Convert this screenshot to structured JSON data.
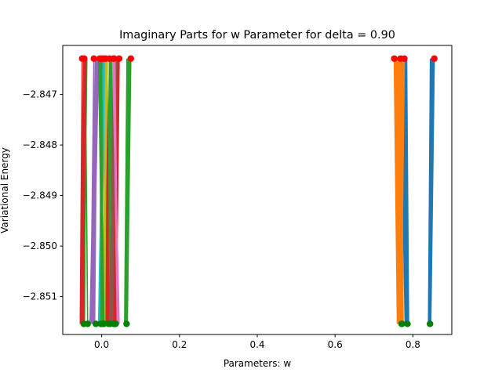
{
  "chart_data": {
    "type": "line",
    "title": "Imaginary Parts for w Parameter for delta = 0.90",
    "xlabel": "Parameters: w",
    "ylabel": "Variational Energy",
    "xlim": [
      -0.1,
      0.9
    ],
    "ylim": [
      -2.85175,
      -2.84603
    ],
    "xticks": [
      0.0,
      0.2,
      0.4,
      0.6,
      0.8
    ],
    "xtick_labels": [
      "0.0",
      "0.2",
      "0.4",
      "0.6",
      "0.8"
    ],
    "yticks": [
      -2.847,
      -2.848,
      -2.849,
      -2.85,
      -2.851
    ],
    "ytick_labels": [
      "−2.847",
      "−2.848",
      "−2.849",
      "−2.850",
      "−2.851"
    ],
    "grid": false,
    "legend": "none",
    "y_top": -2.84629,
    "y_bottom": -2.85154,
    "start_marker_color": "#ff0000",
    "end_marker_color": "#008000",
    "series": [
      {
        "color": "#1f77b4",
        "x": [
          0.855,
          0.846,
          0.853,
          0.845,
          0.852,
          0.844,
          0.851,
          0.843,
          0.85,
          0.842,
          0.849,
          0.843,
          0.848,
          0.841,
          0.847,
          0.842,
          0.846,
          0.84,
          0.845,
          0.841,
          0.844
        ],
        "start": [
          0.855,
          -2.84629
        ],
        "end": [
          0.844,
          -2.85154
        ]
      },
      {
        "color": "#1f77b4",
        "x": [
          0.768,
          0.78,
          0.771,
          0.783,
          0.774,
          0.786,
          0.777,
          0.789,
          0.78,
          0.786,
          0.782,
          0.788,
          0.784,
          0.789,
          0.786
        ],
        "start": [
          0.768,
          -2.84629
        ],
        "end": [
          0.786,
          -2.85154
        ]
      },
      {
        "color": "#ff7f0e",
        "x": [
          0.752,
          0.76,
          0.754,
          0.763,
          0.757,
          0.766,
          0.76,
          0.769,
          0.762,
          0.771,
          0.765,
          0.773,
          0.768,
          0.772,
          0.77,
          0.775,
          0.771
        ],
        "start": [
          0.752,
          -2.84629
        ],
        "end": [
          0.771,
          -2.85154
        ]
      },
      {
        "color": "#ff7f0e",
        "x": [
          0.778,
          0.77,
          0.777,
          0.769,
          0.776,
          0.768,
          0.775,
          0.767,
          0.774,
          0.766,
          0.772
        ],
        "start": [
          0.778,
          -2.84629
        ],
        "end": [
          0.772,
          -2.85154
        ]
      },
      {
        "color": "#2ca02c",
        "x": [
          0.075,
          0.066,
          0.073,
          0.064,
          0.071,
          0.062,
          0.069,
          0.06,
          0.067,
          0.059,
          0.065,
          0.061,
          0.064
        ],
        "start": [
          0.075,
          -2.84629
        ],
        "end": [
          0.064,
          -2.85154
        ]
      },
      {
        "color": "#2ca02c",
        "x": [
          -0.045,
          -0.052,
          -0.043,
          -0.051,
          -0.041,
          -0.049,
          -0.039,
          -0.047,
          -0.038,
          -0.046,
          -0.04,
          -0.044,
          -0.042,
          -0.036
        ],
        "start": [
          -0.045,
          -2.84629
        ],
        "end": [
          -0.036,
          -2.85154
        ]
      },
      {
        "color": "#2ca02c",
        "x": [
          0.02,
          0.012,
          0.022,
          0.01,
          0.024,
          0.014,
          0.026,
          0.016,
          0.028,
          0.018,
          0.025,
          0.02,
          0.022
        ],
        "start": [
          0.02,
          -2.84629
        ],
        "end": [
          0.022,
          -2.85154
        ]
      },
      {
        "color": "#d62728",
        "x": [
          -0.05,
          -0.055,
          -0.046,
          -0.054,
          -0.044,
          -0.052,
          -0.042,
          -0.05,
          -0.04,
          -0.048,
          -0.044,
          -0.046
        ],
        "start": [
          -0.05,
          -2.84629
        ],
        "end": [
          -0.046,
          -2.85154
        ]
      },
      {
        "color": "#d62728",
        "x": [
          0.005,
          0.012,
          0.003,
          0.014,
          0.005,
          0.016,
          0.007,
          0.017,
          0.01,
          0.019,
          0.012,
          0.016,
          0.014,
          0.018
        ],
        "start": [
          0.005,
          -2.84629
        ],
        "end": [
          0.018,
          -2.85154
        ]
      },
      {
        "color": "#d62728",
        "x": [
          0.045,
          0.038,
          0.043,
          0.036,
          0.041,
          0.034,
          0.039,
          0.032,
          0.037,
          0.03,
          0.034,
          0.032,
          0.033
        ],
        "start": [
          0.045,
          -2.84629
        ],
        "end": [
          0.033,
          -2.85154
        ]
      },
      {
        "color": "#9467bd",
        "x": [
          -0.02,
          -0.028,
          -0.016,
          -0.03,
          -0.012,
          -0.026,
          -0.01,
          -0.024,
          -0.008,
          -0.022,
          -0.012,
          -0.018,
          -0.014,
          -0.02,
          -0.015
        ],
        "start": [
          -0.02,
          -2.84629
        ],
        "end": [
          -0.015,
          -2.85154
        ]
      },
      {
        "color": "#8c564b",
        "x": [
          0.03,
          0.022,
          0.033,
          0.02,
          0.036,
          0.024,
          0.038,
          0.026,
          0.035,
          0.028,
          0.031
        ],
        "start": [
          0.03,
          -2.84629
        ],
        "end": [
          0.031,
          -2.85154
        ]
      },
      {
        "color": "#e377c2",
        "x": [
          0.032,
          0.04,
          0.03,
          0.043,
          0.028,
          0.045,
          0.03,
          0.042,
          0.034,
          0.04,
          0.036
        ],
        "start": [
          0.032,
          -2.84629
        ],
        "end": [
          0.036,
          -2.85154
        ]
      },
      {
        "color": "#17becf",
        "x": [
          0.0,
          -0.006,
          0.004,
          -0.008,
          0.006,
          -0.004,
          0.008,
          -0.002,
          0.004,
          0.0,
          0.003
        ],
        "start": [
          0.0,
          -2.84629
        ],
        "end": [
          0.003,
          -2.85154
        ]
      },
      {
        "color": "#bcbd22",
        "x": [
          0.01,
          0.004,
          0.013,
          0.002,
          0.015,
          0.005,
          0.012,
          0.008,
          0.01,
          0.006
        ],
        "start": [
          0.01,
          -2.84629
        ],
        "end": [
          0.006,
          -2.85154
        ]
      },
      {
        "color": "#2ca02c",
        "x": [
          -0.005,
          0.002,
          -0.008,
          0.004,
          -0.006,
          0.006,
          -0.003,
          0.003,
          0.0,
          -0.002
        ],
        "start": [
          -0.005,
          -2.84629
        ],
        "end": [
          -0.002,
          -2.85154
        ]
      }
    ]
  }
}
